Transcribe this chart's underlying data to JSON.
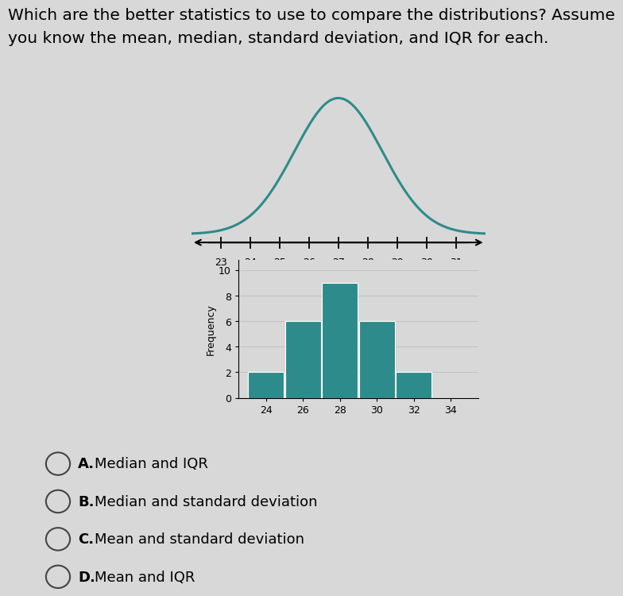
{
  "question_line1": "Which are the better statistics to use to compare the distributions? Assume",
  "question_line2": "you know the mean, median, standard deviation, and IQR for each.",
  "background_color": "#d8d8d8",
  "teal_color": "#2e8b8b",
  "bell_mean": 27,
  "bell_std": 1.5,
  "number_line_ticks": [
    23,
    24,
    25,
    26,
    27,
    28,
    29,
    30,
    31
  ],
  "hist_ylabel": "Frequency",
  "hist_yticks": [
    0,
    2,
    4,
    6,
    8,
    10
  ],
  "hist_ylim": [
    0,
    10.8
  ],
  "hist_xticks": [
    24,
    26,
    28,
    30,
    32,
    34
  ],
  "bar_centers": [
    24,
    26,
    28,
    30,
    32
  ],
  "bar_heights": [
    2,
    6,
    9,
    6,
    2
  ],
  "bar_width": 1.95,
  "choices": [
    {
      "label": "A.",
      "text": "  Median and IQR"
    },
    {
      "label": "B.",
      "text": "  Median and standard deviation"
    },
    {
      "label": "C.",
      "text": "  Mean and standard deviation"
    },
    {
      "label": "D.",
      "text": "  Mean and IQR"
    }
  ]
}
